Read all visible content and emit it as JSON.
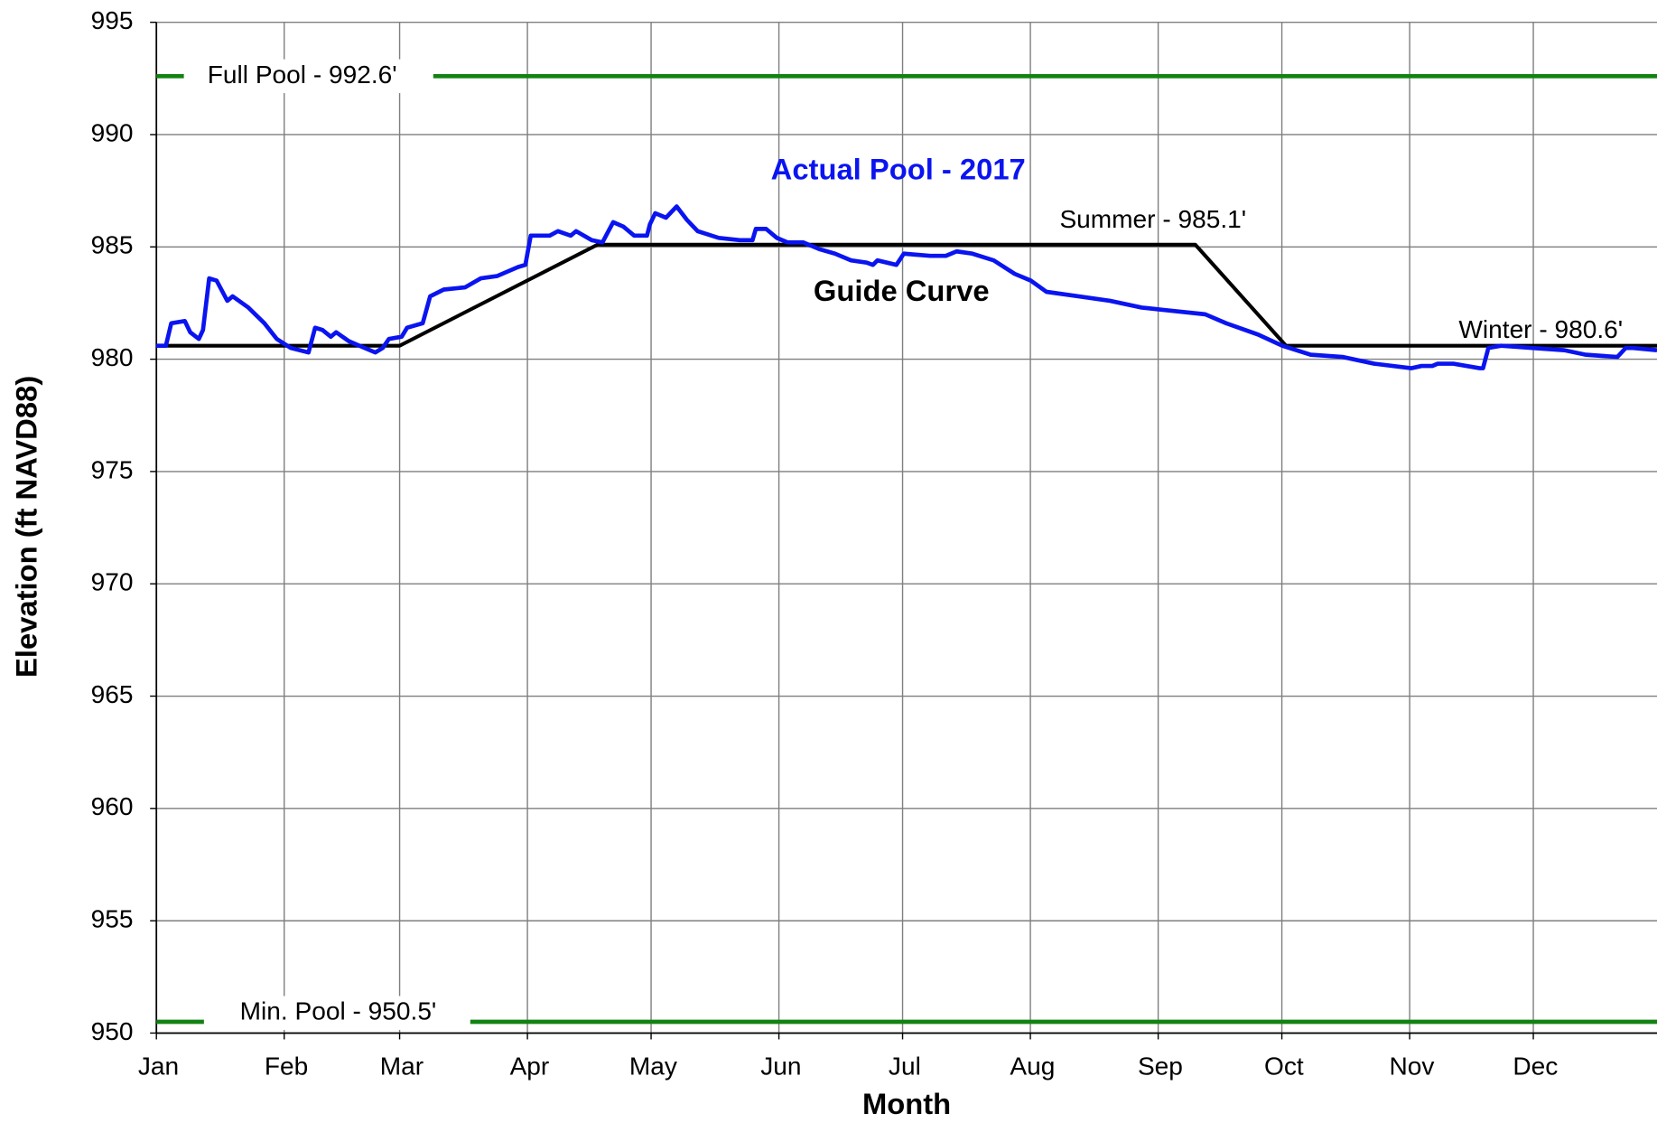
{
  "chart_data": {
    "type": "line",
    "xlabel": "Month",
    "ylabel": "Elevation (ft NAVD88)",
    "xlim": [
      0,
      364
    ],
    "ylim": [
      950,
      995
    ],
    "xticks": [
      {
        "value": 0,
        "label": "Jan"
      },
      {
        "value": 31,
        "label": "Feb"
      },
      {
        "value": 59,
        "label": "Mar"
      },
      {
        "value": 90,
        "label": "Apr"
      },
      {
        "value": 120,
        "label": "May"
      },
      {
        "value": 151,
        "label": "Jun"
      },
      {
        "value": 181,
        "label": "Jul"
      },
      {
        "value": 212,
        "label": "Aug"
      },
      {
        "value": 243,
        "label": "Sep"
      },
      {
        "value": 273,
        "label": "Oct"
      },
      {
        "value": 304,
        "label": "Nov"
      },
      {
        "value": 334,
        "label": "Dec"
      }
    ],
    "yticks": [
      950,
      955,
      960,
      965,
      970,
      975,
      980,
      985,
      990,
      995
    ],
    "grid": true,
    "series": [
      {
        "name": "Full Pool - 992.6'",
        "color": "#128212",
        "x": [
          0,
          364
        ],
        "values": [
          992.6,
          992.6
        ]
      },
      {
        "name": "Min. Pool - 950.5'",
        "color": "#128212",
        "x": [
          0,
          364
        ],
        "values": [
          950.5,
          950.5
        ]
      },
      {
        "name": "Guide Curve",
        "color": "#000000",
        "x": [
          0,
          59,
          107,
          252,
          274,
          364
        ],
        "values": [
          980.6,
          980.6,
          985.1,
          985.1,
          980.6,
          980.6
        ]
      },
      {
        "name": "Actual Pool - 2017",
        "color": "#0a14f0",
        "x": [
          0,
          2.3,
          3.6,
          6.9,
          8.2,
          10.3,
          11.3,
          12.8,
          14.6,
          17.2,
          18.5,
          22.3,
          26.2,
          29.2,
          32.6,
          36.9,
          38.5,
          40.3,
          42.3,
          43.6,
          46.7,
          50.5,
          53.1,
          54.9,
          56.4,
          59.5,
          60.8,
          64.6,
          66.4,
          69.7,
          74.9,
          78.7,
          82.6,
          87.7,
          89.5,
          90.8,
          95.4,
          97.4,
          100.5,
          101.8,
          105.6,
          108.2,
          110.8,
          113.3,
          115.9,
          119,
          119.7,
          121,
          123.6,
          126.2,
          128.7,
          131.3,
          136.4,
          141.5,
          144.6,
          145.4,
          147.9,
          150.5,
          153.1,
          156.9,
          160.8,
          164.6,
          168.5,
          172.3,
          173.8,
          174.9,
          179.5,
          181.3,
          187.7,
          191.5,
          194.1,
          197.9,
          203.1,
          208.2,
          212.1,
          215.9,
          223.6,
          231.3,
          239,
          244.1,
          254.4,
          259.5,
          267.2,
          273.1,
          280,
          287.7,
          295.4,
          304.4,
          306.9,
          309.5,
          310.8,
          314.6,
          321,
          321.8,
          323.1,
          326.2,
          333.8,
          341.5,
          346.7,
          354.4,
          356.4,
          358.2,
          364
        ],
        "values": [
          980.6,
          980.6,
          981.6,
          981.7,
          981.2,
          980.9,
          981.3,
          983.6,
          983.5,
          982.6,
          982.8,
          982.3,
          981.6,
          980.9,
          980.5,
          980.3,
          981.4,
          981.3,
          981.0,
          981.2,
          980.8,
          980.5,
          980.3,
          980.5,
          980.9,
          981.0,
          981.4,
          981.6,
          982.8,
          983.1,
          983.2,
          983.6,
          983.7,
          984.1,
          984.2,
          985.5,
          985.5,
          985.7,
          985.5,
          985.7,
          985.3,
          985.2,
          986.1,
          985.9,
          985.5,
          985.5,
          986.0,
          986.5,
          986.3,
          986.8,
          986.2,
          985.7,
          985.4,
          985.3,
          985.3,
          985.8,
          985.8,
          985.4,
          985.2,
          985.2,
          984.9,
          984.7,
          984.4,
          984.3,
          984.2,
          984.4,
          984.2,
          984.7,
          984.6,
          984.6,
          984.8,
          984.7,
          984.4,
          983.8,
          983.5,
          983.0,
          982.8,
          982.6,
          982.3,
          982.2,
          982.0,
          981.6,
          981.1,
          980.6,
          980.2,
          980.1,
          979.8,
          979.6,
          979.7,
          979.7,
          979.8,
          979.8,
          979.6,
          979.6,
          980.5,
          980.6,
          980.5,
          980.4,
          980.2,
          980.1,
          980.5,
          980.5,
          980.4
        ]
      }
    ],
    "annotations": [
      "Summer - 985.1'",
      "Winter - 980.6'"
    ]
  }
}
